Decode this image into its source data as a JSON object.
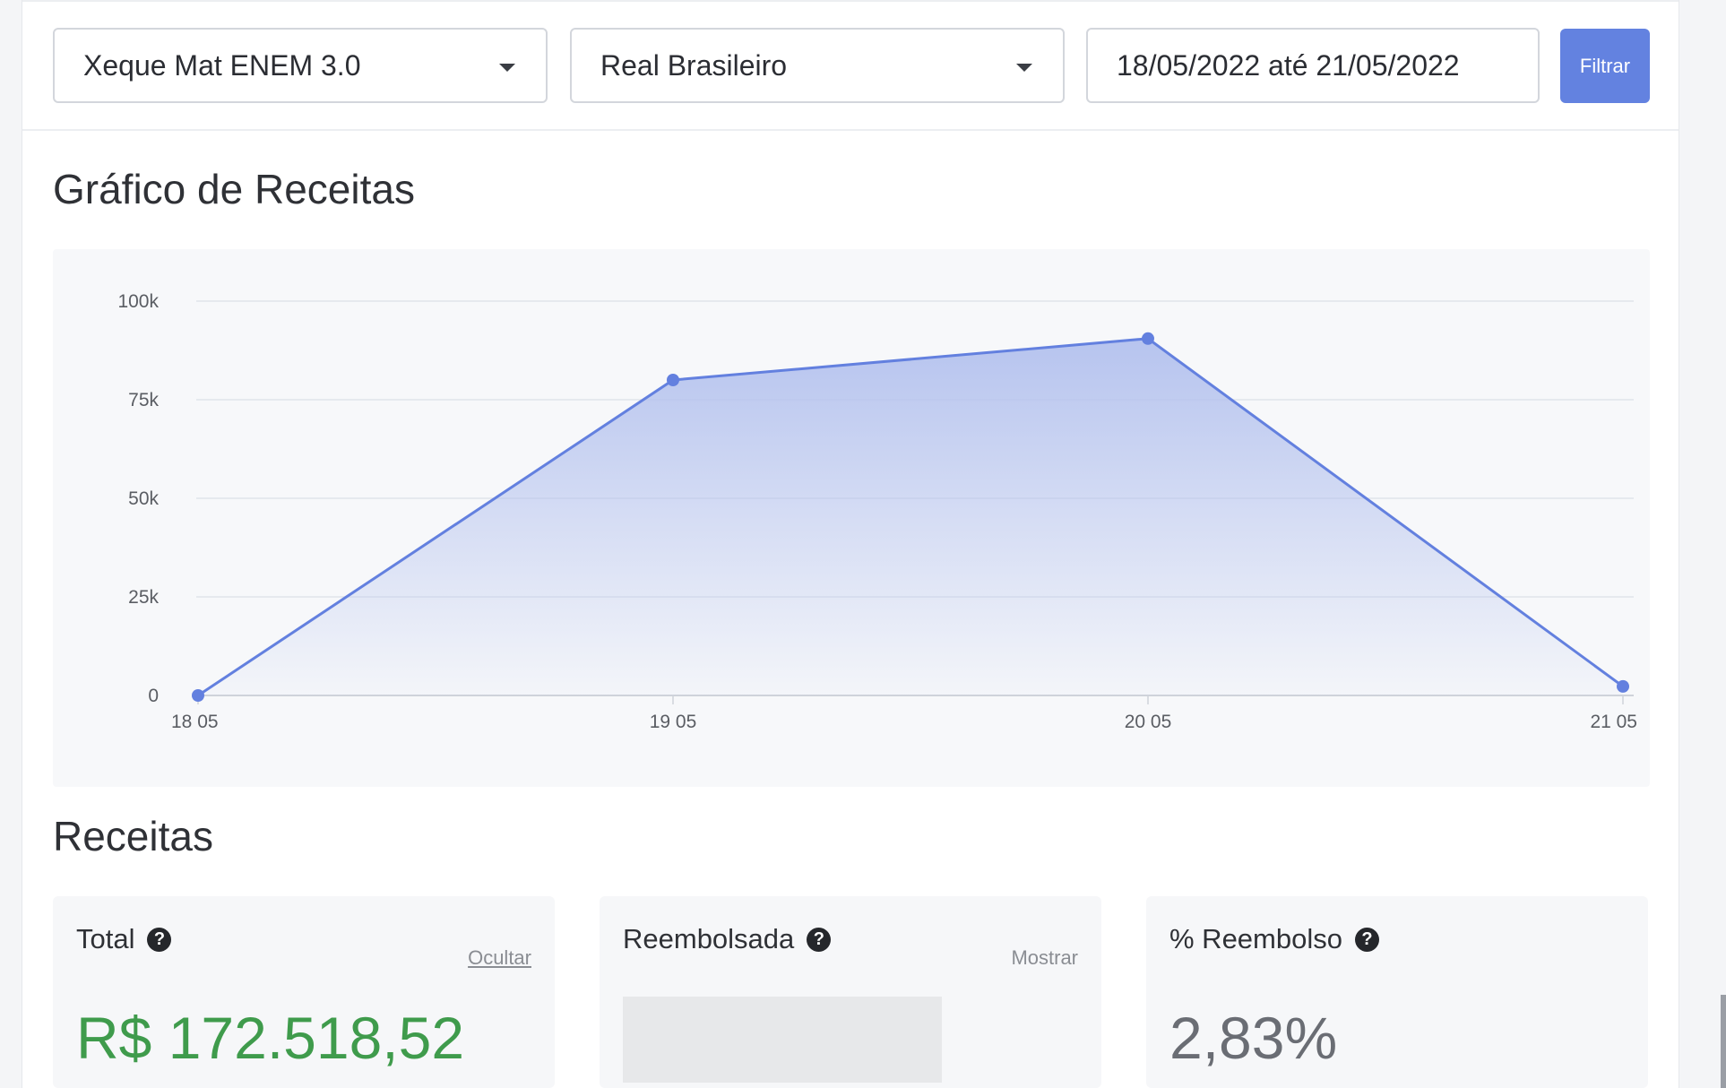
{
  "filters": {
    "product": "Xeque Mat ENEM 3.0",
    "currency": "Real Brasileiro",
    "date_range": "18/05/2022 até 21/05/2022",
    "filter_button": "Filtrar"
  },
  "chart_section": {
    "title": "Gráfico de Receitas"
  },
  "chart_data": {
    "type": "area",
    "title": "",
    "xlabel": "",
    "ylabel": "",
    "categories": [
      "18 05",
      "19 05",
      "20 05",
      "21 05"
    ],
    "series": [
      {
        "values": [
          0,
          80000,
          90500,
          2300
        ]
      }
    ],
    "ylim": [
      0,
      100000
    ],
    "yticks": [
      {
        "value": 0,
        "label": "0"
      },
      {
        "value": 25000,
        "label": "25k"
      },
      {
        "value": 50000,
        "label": "50k"
      },
      {
        "value": 75000,
        "label": "75k"
      },
      {
        "value": 100000,
        "label": "100k"
      }
    ],
    "grid": true,
    "line_color": "#6380df",
    "fill_color": "#b9c6ef"
  },
  "revenue_section": {
    "title": "Receitas",
    "cards": [
      {
        "label": "Total",
        "link": "Ocultar",
        "value": "R$ 172.518,52",
        "value_color": "#3f9b4c"
      },
      {
        "label": "Reembolsada",
        "link": "Mostrar",
        "value": ""
      },
      {
        "label": "% Reembolso",
        "link": "",
        "value": "2,83%",
        "value_color": "#6a6d74"
      }
    ]
  }
}
